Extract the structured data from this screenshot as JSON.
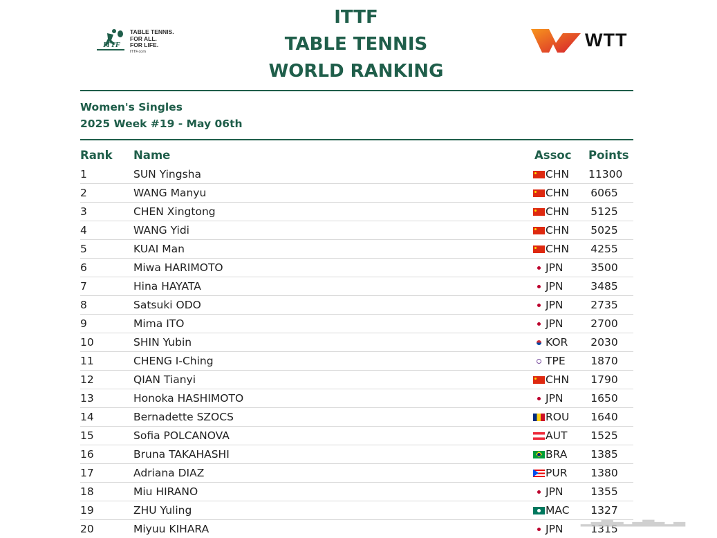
{
  "header": {
    "title_lines": [
      "ITTF",
      "TABLE TENNIS",
      "WORLD RANKING"
    ],
    "ittf_logo_text": [
      "TABLE TENNIS.",
      "FOR ALL.",
      "FOR LIFE.",
      "ITTF.com"
    ],
    "wtt_logo_text": "WTT"
  },
  "colors": {
    "accent": "#1f5e4a",
    "wtt_orange": "#f26522",
    "wtt_red": "#d6202e"
  },
  "event": {
    "category": "Women's Singles",
    "week": "2025 Week #19 - May 06th"
  },
  "table": {
    "columns": {
      "rank": "Rank",
      "name": "Name",
      "assoc": "Assoc",
      "points": "Points"
    },
    "rows": [
      {
        "rank": "1",
        "name": "SUN Yingsha",
        "flag": "chn",
        "assoc": "CHN",
        "points": "11300"
      },
      {
        "rank": "2",
        "name": "WANG Manyu",
        "flag": "chn",
        "assoc": "CHN",
        "points": "6065"
      },
      {
        "rank": "3",
        "name": "CHEN Xingtong",
        "flag": "chn",
        "assoc": "CHN",
        "points": "5125"
      },
      {
        "rank": "4",
        "name": "WANG Yidi",
        "flag": "chn",
        "assoc": "CHN",
        "points": "5025"
      },
      {
        "rank": "5",
        "name": "KUAI Man",
        "flag": "chn",
        "assoc": "CHN",
        "points": "4255"
      },
      {
        "rank": "6",
        "name": "Miwa HARIMOTO",
        "flag": "jpn",
        "assoc": "JPN",
        "points": "3500"
      },
      {
        "rank": "7",
        "name": "Hina HAYATA",
        "flag": "jpn",
        "assoc": "JPN",
        "points": "3485"
      },
      {
        "rank": "8",
        "name": "Satsuki ODO",
        "flag": "jpn",
        "assoc": "JPN",
        "points": "2735"
      },
      {
        "rank": "9",
        "name": "Mima ITO",
        "flag": "jpn",
        "assoc": "JPN",
        "points": "2700"
      },
      {
        "rank": "10",
        "name": "SHIN Yubin",
        "flag": "kor",
        "assoc": "KOR",
        "points": "2030"
      },
      {
        "rank": "11",
        "name": "CHENG I-Ching",
        "flag": "tpe",
        "assoc": "TPE",
        "points": "1870"
      },
      {
        "rank": "12",
        "name": "QIAN Tianyi",
        "flag": "chn",
        "assoc": "CHN",
        "points": "1790"
      },
      {
        "rank": "13",
        "name": "Honoka HASHIMOTO",
        "flag": "jpn",
        "assoc": "JPN",
        "points": "1650"
      },
      {
        "rank": "14",
        "name": "Bernadette SZOCS",
        "flag": "rou",
        "assoc": "ROU",
        "points": "1640"
      },
      {
        "rank": "15",
        "name": "Sofia POLCANOVA",
        "flag": "aut",
        "assoc": "AUT",
        "points": "1525"
      },
      {
        "rank": "16",
        "name": "Bruna TAKAHASHI",
        "flag": "bra",
        "assoc": "BRA",
        "points": "1385"
      },
      {
        "rank": "17",
        "name": "Adriana DIAZ",
        "flag": "pur",
        "assoc": "PUR",
        "points": "1380"
      },
      {
        "rank": "18",
        "name": "Miu HIRANO",
        "flag": "jpn",
        "assoc": "JPN",
        "points": "1355"
      },
      {
        "rank": "19",
        "name": "ZHU Yuling",
        "flag": "mac",
        "assoc": "MAC",
        "points": "1327"
      },
      {
        "rank": "20",
        "name": "Miyuu KIHARA",
        "flag": "jpn",
        "assoc": "JPN",
        "points": "1315"
      }
    ]
  }
}
